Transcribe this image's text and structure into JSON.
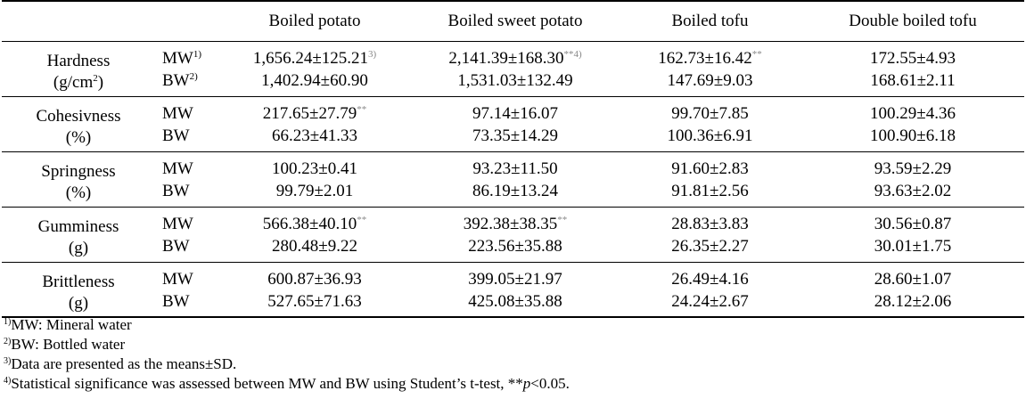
{
  "headers": [
    "",
    "",
    "Boiled potato",
    "Boiled sweet potato",
    "Boiled tofu",
    "Double boiled tofu"
  ],
  "rows": [
    {
      "property": "Hardness",
      "unit_prefix": "(g/cm",
      "unit_sup": "2",
      "unit_suffix": ")",
      "lines": [
        {
          "water": "MW",
          "water_sup": "1)",
          "cells": [
            {
              "text": "1,656.24±125.21",
              "sup": "3)"
            },
            {
              "text": "2,141.39±168.30",
              "sup": "**4)"
            },
            {
              "text": "162.73±16.42",
              "sup": "**"
            },
            {
              "text": "172.55±4.93",
              "sup": ""
            }
          ]
        },
        {
          "water": "BW",
          "water_sup": "2)",
          "cells": [
            {
              "text": "1,402.94±60.90",
              "sup": ""
            },
            {
              "text": "1,531.03±132.49",
              "sup": ""
            },
            {
              "text": "147.69±9.03",
              "sup": ""
            },
            {
              "text": "168.61±2.11",
              "sup": ""
            }
          ]
        }
      ]
    },
    {
      "property": "Cohesivness",
      "unit_prefix": "(%)",
      "unit_sup": "",
      "unit_suffix": "",
      "lines": [
        {
          "water": "MW",
          "water_sup": "",
          "cells": [
            {
              "text": "217.65±27.79",
              "sup": "**"
            },
            {
              "text": "97.14±16.07",
              "sup": ""
            },
            {
              "text": "99.70±7.85",
              "sup": ""
            },
            {
              "text": "100.29±4.36",
              "sup": ""
            }
          ]
        },
        {
          "water": "BW",
          "water_sup": "",
          "cells": [
            {
              "text": "66.23±41.33",
              "sup": ""
            },
            {
              "text": "73.35±14.29",
              "sup": ""
            },
            {
              "text": "100.36±6.91",
              "sup": ""
            },
            {
              "text": "100.90±6.18",
              "sup": ""
            }
          ]
        }
      ]
    },
    {
      "property": "Springness",
      "unit_prefix": "(%)",
      "unit_sup": "",
      "unit_suffix": "",
      "lines": [
        {
          "water": "MW",
          "water_sup": "",
          "cells": [
            {
              "text": "100.23±0.41",
              "sup": ""
            },
            {
              "text": "93.23±11.50",
              "sup": ""
            },
            {
              "text": "91.60±2.83",
              "sup": ""
            },
            {
              "text": "93.59±2.29",
              "sup": ""
            }
          ]
        },
        {
          "water": "BW",
          "water_sup": "",
          "cells": [
            {
              "text": "99.79±2.01",
              "sup": ""
            },
            {
              "text": "86.19±13.24",
              "sup": ""
            },
            {
              "text": "91.81±2.56",
              "sup": ""
            },
            {
              "text": "93.63±2.02",
              "sup": ""
            }
          ]
        }
      ]
    },
    {
      "property": "Gumminess",
      "unit_prefix": "(g)",
      "unit_sup": "",
      "unit_suffix": "",
      "lines": [
        {
          "water": "MW",
          "water_sup": "",
          "cells": [
            {
              "text": "566.38±40.10",
              "sup": "**"
            },
            {
              "text": "392.38±38.35",
              "sup": "**"
            },
            {
              "text": "28.83±3.83",
              "sup": ""
            },
            {
              "text": "30.56±0.87",
              "sup": ""
            }
          ]
        },
        {
          "water": "BW",
          "water_sup": "",
          "cells": [
            {
              "text": "280.48±9.22",
              "sup": ""
            },
            {
              "text": "223.56±35.88",
              "sup": ""
            },
            {
              "text": "26.35±2.27",
              "sup": ""
            },
            {
              "text": "30.01±1.75",
              "sup": ""
            }
          ]
        }
      ]
    },
    {
      "property": "Brittleness",
      "unit_prefix": "(g)",
      "unit_sup": "",
      "unit_suffix": "",
      "lines": [
        {
          "water": "MW",
          "water_sup": "",
          "cells": [
            {
              "text": "600.87±36.93",
              "sup": ""
            },
            {
              "text": "399.05±21.97",
              "sup": ""
            },
            {
              "text": "26.49±4.16",
              "sup": ""
            },
            {
              "text": "28.60±1.07",
              "sup": ""
            }
          ]
        },
        {
          "water": "BW",
          "water_sup": "",
          "cells": [
            {
              "text": "527.65±71.63",
              "sup": ""
            },
            {
              "text": "425.08±35.88",
              "sup": ""
            },
            {
              "text": "24.24±2.67",
              "sup": ""
            },
            {
              "text": "28.12±2.06",
              "sup": ""
            }
          ]
        }
      ]
    }
  ],
  "footnotes": [
    {
      "mark": "1)",
      "text": "MW: Mineral water"
    },
    {
      "mark": "2)",
      "text": "BW: Bottled water"
    },
    {
      "mark": "3)",
      "text": "Data are presented as the means±SD."
    },
    {
      "mark": "4)",
      "text": "Statistical significance was assessed between MW and BW using Student’s t-test, **",
      "italic": "p",
      "tail": "<0.05."
    }
  ]
}
